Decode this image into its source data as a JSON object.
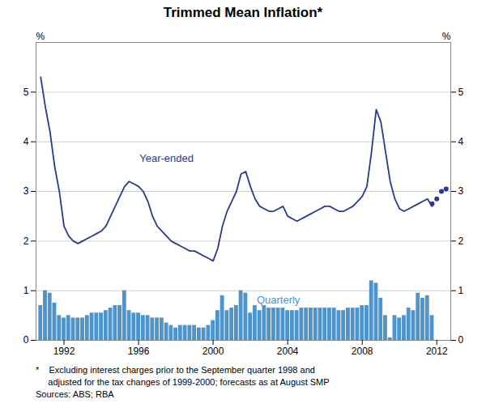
{
  "chart_data": {
    "type": "bar",
    "title": "Trimmed Mean Inflation*",
    "notes": [
      "*    Excluding interest charges prior to the September quarter 1998 and",
      "     adjusted for the tax changes of 1999-2000; forecasts as at August SMP",
      "Sources: ABS; RBA"
    ],
    "ylabel": "%",
    "y2label": "%",
    "xlim": [
      1990.5,
      2012.75
    ],
    "xticks": [
      1992,
      1996,
      2000,
      2004,
      2008,
      2012
    ],
    "ylim": [
      0,
      6
    ],
    "yticks": [
      0,
      1,
      2,
      3,
      4,
      5
    ],
    "y2lim": [
      0,
      6
    ],
    "y2ticks": [
      0,
      1,
      2,
      3,
      4,
      5
    ],
    "grid": true,
    "x": [
      1990.75,
      1991.0,
      1991.25,
      1991.5,
      1991.75,
      1992.0,
      1992.25,
      1992.5,
      1992.75,
      1993.0,
      1993.25,
      1993.5,
      1993.75,
      1994.0,
      1994.25,
      1994.5,
      1994.75,
      1995.0,
      1995.25,
      1995.5,
      1995.75,
      1996.0,
      1996.25,
      1996.5,
      1996.75,
      1997.0,
      1997.25,
      1997.5,
      1997.75,
      1998.0,
      1998.25,
      1998.5,
      1998.75,
      1999.0,
      1999.25,
      1999.5,
      1999.75,
      2000.0,
      2000.25,
      2000.5,
      2000.75,
      2001.0,
      2001.25,
      2001.5,
      2001.75,
      2002.0,
      2002.25,
      2002.5,
      2002.75,
      2003.0,
      2003.25,
      2003.5,
      2003.75,
      2004.0,
      2004.25,
      2004.5,
      2004.75,
      2005.0,
      2005.25,
      2005.5,
      2005.75,
      2006.0,
      2006.25,
      2006.5,
      2006.75,
      2007.0,
      2007.25,
      2007.5,
      2007.75,
      2008.0,
      2008.25,
      2008.5,
      2008.75,
      2009.0,
      2009.25,
      2009.5,
      2009.75,
      2010.0,
      2010.25,
      2010.5,
      2010.75,
      2011.0,
      2011.25,
      2011.5,
      2011.75
    ],
    "series": [
      {
        "type": "bar",
        "color": "#4d94cc",
        "values": [
          0.7,
          1.0,
          0.95,
          0.75,
          0.5,
          0.45,
          0.5,
          0.45,
          0.45,
          0.45,
          0.5,
          0.55,
          0.55,
          0.55,
          0.6,
          0.65,
          0.7,
          0.7,
          1.0,
          0.6,
          0.55,
          0.55,
          0.5,
          0.5,
          0.45,
          0.45,
          0.45,
          0.35,
          0.3,
          0.25,
          0.3,
          0.3,
          0.3,
          0.3,
          0.25,
          0.25,
          0.3,
          0.4,
          0.6,
          0.9,
          0.6,
          0.65,
          0.7,
          1.0,
          0.95,
          0.55,
          0.7,
          0.6,
          0.7,
          0.65,
          0.65,
          0.65,
          0.65,
          0.6,
          0.6,
          0.6,
          0.65,
          0.65,
          0.65,
          0.65,
          0.65,
          0.65,
          0.65,
          0.65,
          0.6,
          0.6,
          0.65,
          0.65,
          0.65,
          0.7,
          0.7,
          1.2,
          1.15,
          0.85,
          0.5,
          0.05,
          0.5,
          0.45,
          0.5,
          0.65,
          0.6,
          0.95,
          0.85,
          0.9,
          0.5
        ]
      },
      {
        "type": "line",
        "color": "#2b3990",
        "values": [
          5.3,
          4.7,
          4.2,
          3.5,
          3.0,
          2.3,
          2.1,
          2.0,
          1.95,
          2.0,
          2.05,
          2.1,
          2.15,
          2.2,
          2.3,
          2.5,
          2.7,
          2.9,
          3.1,
          3.2,
          3.15,
          3.1,
          3.0,
          2.8,
          2.5,
          2.3,
          2.2,
          2.1,
          2.0,
          1.95,
          1.9,
          1.85,
          1.8,
          1.8,
          1.75,
          1.7,
          1.65,
          1.6,
          1.85,
          2.3,
          2.6,
          2.8,
          3.0,
          3.35,
          3.4,
          3.1,
          2.85,
          2.7,
          2.65,
          2.6,
          2.6,
          2.65,
          2.7,
          2.5,
          2.45,
          2.4,
          2.45,
          2.5,
          2.55,
          2.6,
          2.65,
          2.7,
          2.7,
          2.65,
          2.6,
          2.6,
          2.65,
          2.7,
          2.8,
          2.9,
          3.1,
          3.8,
          4.65,
          4.4,
          3.8,
          3.2,
          2.85,
          2.65,
          2.6,
          2.65,
          2.7,
          2.75,
          2.8,
          2.85,
          2.7
        ]
      },
      {
        "type": "scatter",
        "color": "#2b3990",
        "marker": "circle",
        "x": [
          2011.75,
          2012.0,
          2012.25,
          2012.5
        ],
        "values": [
          2.75,
          2.85,
          3.0,
          3.05
        ]
      }
    ],
    "annotations": [
      {
        "text": "Year-ended",
        "x": 1997.5,
        "y": 3.6,
        "color": "#2b3990"
      },
      {
        "text": "Quarterly",
        "x": 2003.5,
        "y": 0.75,
        "color": "#4d94cc"
      }
    ]
  }
}
